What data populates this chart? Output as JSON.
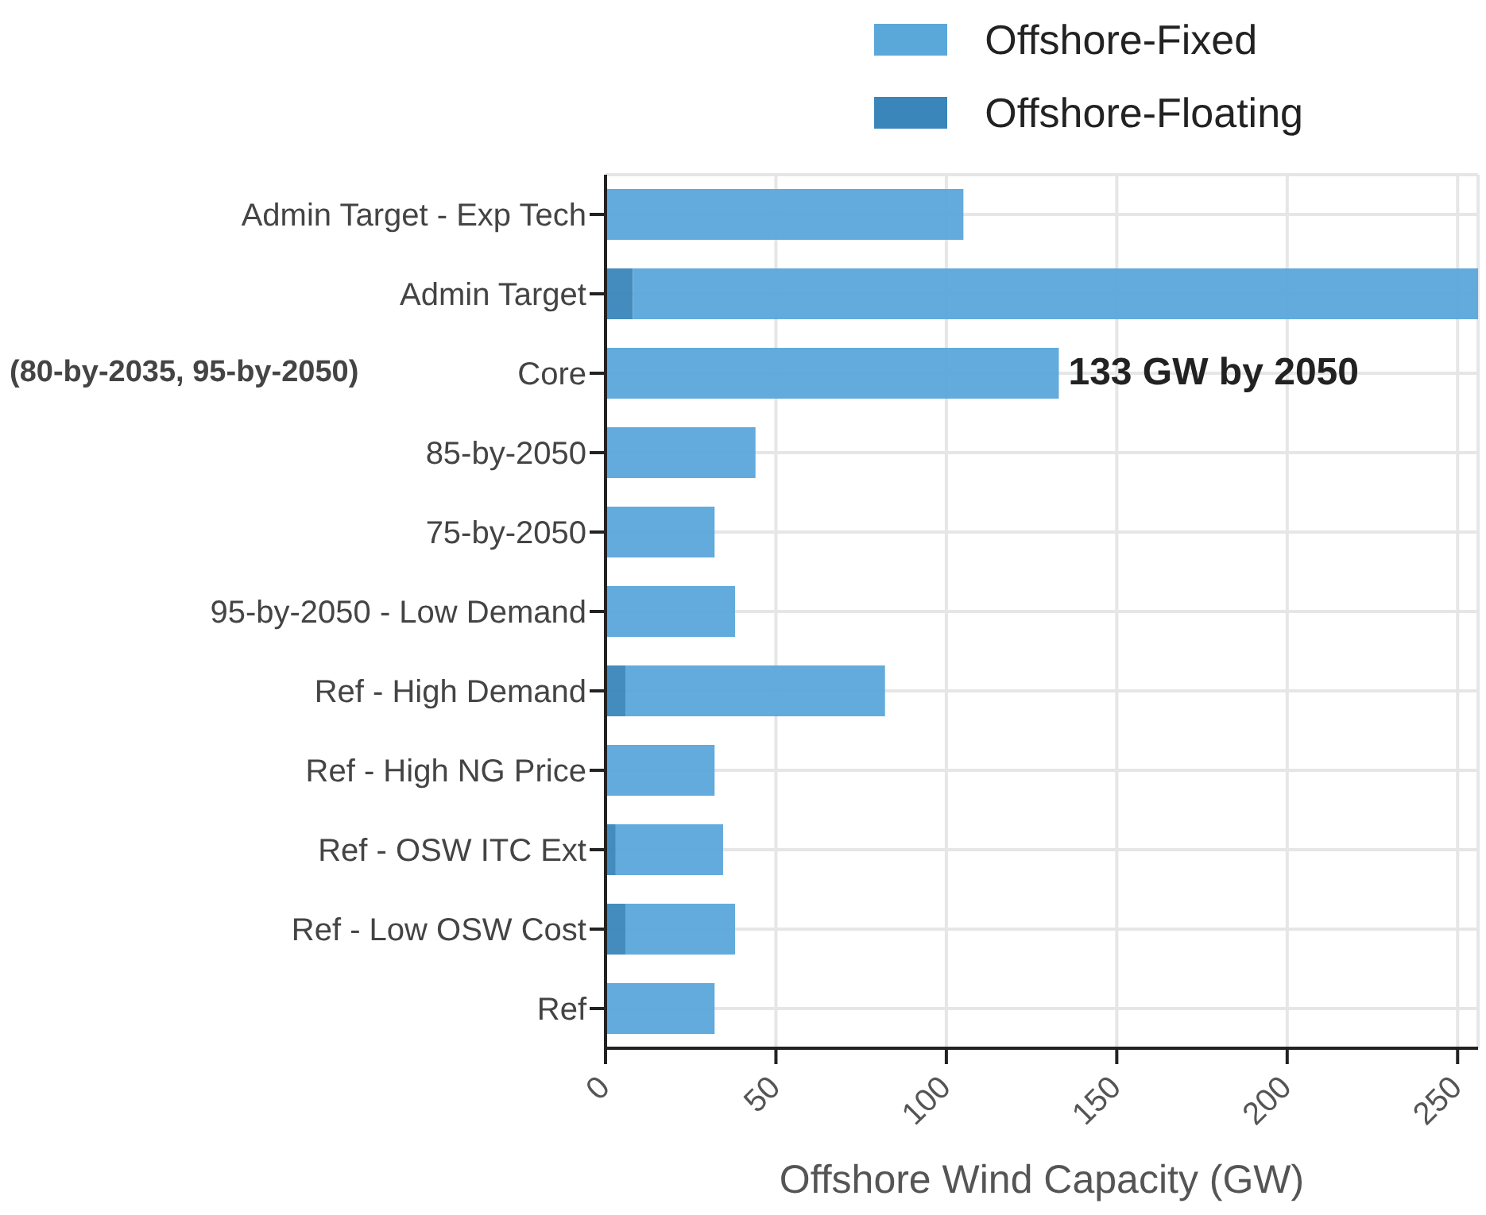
{
  "chart_data": {
    "type": "bar",
    "orientation": "horizontal",
    "stacked": true,
    "categories": [
      "Admin Target - Exp Tech",
      "Admin Target",
      "Core",
      "85-by-2050",
      "75-by-2050",
      "95-by-2050 - Low Demand",
      "Ref - High Demand",
      "Ref - High NG Price",
      "Ref - OSW ITC Ext",
      "Ref - Low OSW Cost",
      "Ref"
    ],
    "series": [
      {
        "name": "Offshore-Floating",
        "color": "#3a86bb",
        "values": [
          0,
          8,
          0,
          0,
          0,
          0,
          6,
          0,
          3,
          6,
          0
        ]
      },
      {
        "name": "Offshore-Fixed",
        "color": "#5aa7da",
        "values": [
          105,
          248,
          133,
          44,
          32,
          38,
          76,
          32,
          31.5,
          32,
          32
        ]
      }
    ],
    "xlabel": "Offshore Wind Capacity (GW)",
    "xlim": [
      0,
      256
    ],
    "xticks": [
      0,
      50,
      100,
      150,
      200,
      250
    ],
    "grid": true,
    "legend": "top right",
    "annotations": [
      {
        "text": "133 GW by 2050",
        "x": 133,
        "y": "Core"
      },
      "(80-by-2035, 95-by-2050)"
    ]
  }
}
